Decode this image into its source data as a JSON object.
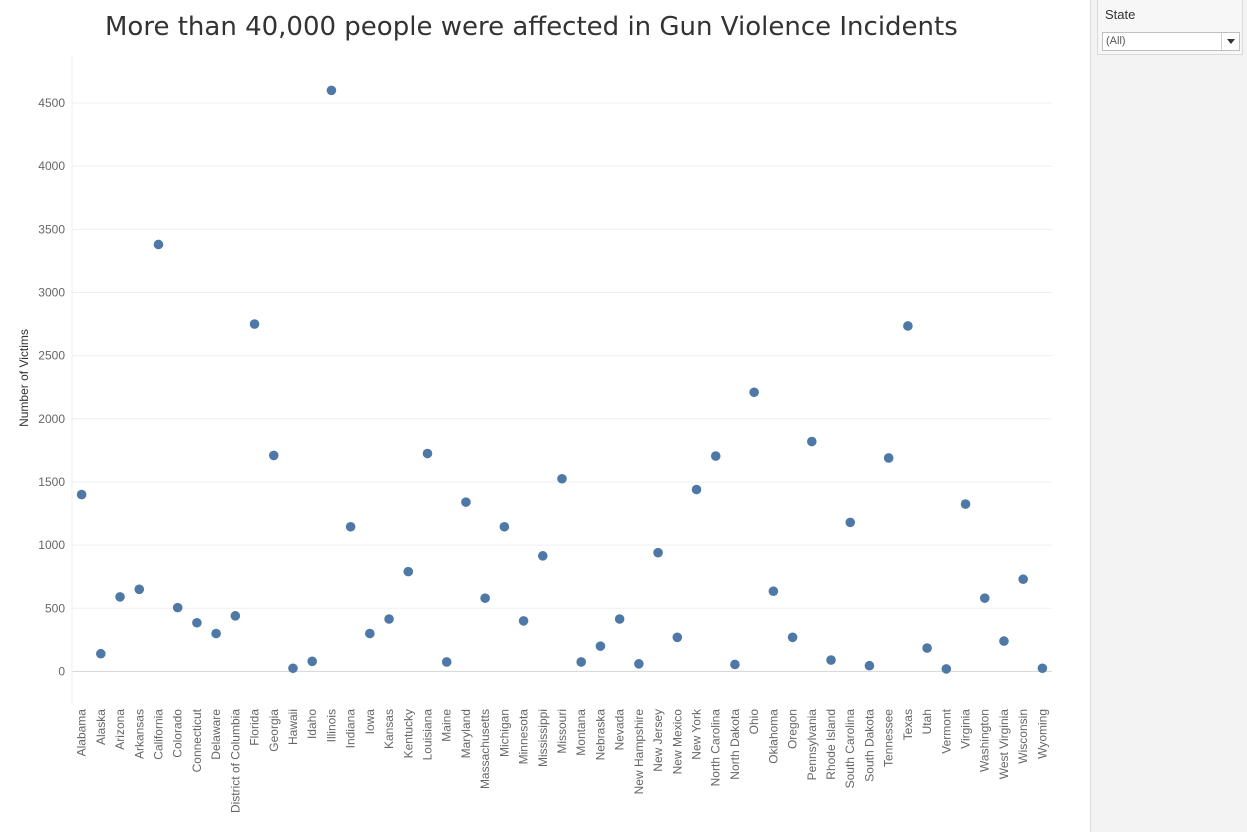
{
  "filter": {
    "label": "State",
    "selected": "(All)"
  },
  "colors": {
    "marker": "#4e79a7",
    "gridline": "#efefef",
    "zeroline": "#d4d4d4",
    "axis_text": "#666666"
  },
  "chart_data": {
    "type": "scatter",
    "title": "More than 40,000 people were affected in Gun Violence Incidents",
    "xlabel": "",
    "ylabel": "Number of Victims",
    "ylim": [
      -250,
      4880
    ],
    "yticks": [
      0,
      500,
      1000,
      1500,
      2000,
      2500,
      3000,
      3500,
      4000,
      4500
    ],
    "grid": true,
    "categories": [
      "Alabama",
      "Alaska",
      "Arizona",
      "Arkansas",
      "California",
      "Colorado",
      "Connecticut",
      "Delaware",
      "District of Columbia",
      "Florida",
      "Georgia",
      "Hawaii",
      "Idaho",
      "Illinois",
      "Indiana",
      "Iowa",
      "Kansas",
      "Kentucky",
      "Louisiana",
      "Maine",
      "Maryland",
      "Massachusetts",
      "Michigan",
      "Minnesota",
      "Mississippi",
      "Missouri",
      "Montana",
      "Nebraska",
      "Nevada",
      "New Hampshire",
      "New Jersey",
      "New Mexico",
      "New York",
      "North Carolina",
      "North Dakota",
      "Ohio",
      "Oklahoma",
      "Oregon",
      "Pennsylvania",
      "Rhode Island",
      "South Carolina",
      "South Dakota",
      "Tennessee",
      "Texas",
      "Utah",
      "Vermont",
      "Virginia",
      "Washington",
      "West Virginia",
      "Wisconsin",
      "Wyoming"
    ],
    "values": [
      1400,
      140,
      590,
      650,
      3380,
      505,
      385,
      300,
      440,
      2750,
      1710,
      25,
      80,
      4600,
      1145,
      300,
      415,
      790,
      1725,
      75,
      1340,
      580,
      1145,
      400,
      915,
      1525,
      75,
      200,
      415,
      60,
      940,
      270,
      1440,
      1705,
      55,
      2210,
      635,
      270,
      1820,
      90,
      1180,
      45,
      1690,
      2735,
      185,
      20,
      1325,
      580,
      240,
      730,
      25
    ]
  }
}
